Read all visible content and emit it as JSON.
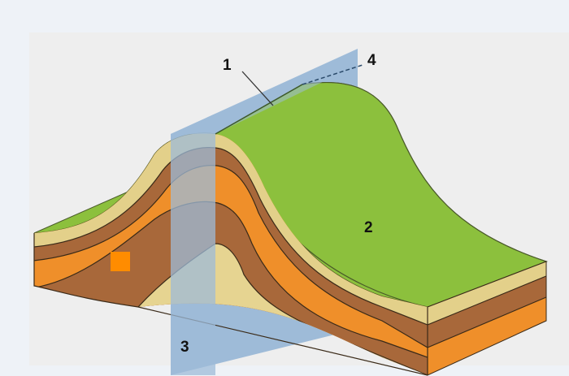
{
  "labels": {
    "n1": "1",
    "n2": "2",
    "n3": "3",
    "n4": "4"
  },
  "colors": {
    "page_background": "#eef2f7",
    "panel": "#eeeeee",
    "surface_green": "#8cc03d",
    "layer_tan": "#e3d08a",
    "layer_brown": "#a8683a",
    "layer_orange": "#ef8f2a",
    "core_sand": "#e6d491",
    "axial_plane": "#9ebbd8",
    "marker": "#ff8c00"
  }
}
